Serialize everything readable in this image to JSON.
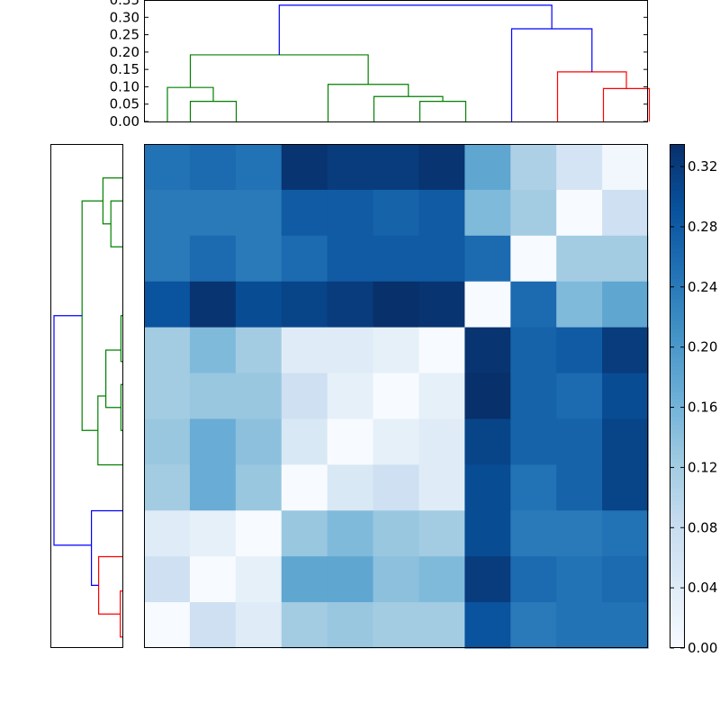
{
  "chart_data": [
    {
      "type": "dendrogram",
      "orientation": "top",
      "ylim": [
        0,
        0.35
      ],
      "yticks": [
        "0.00",
        "0.05",
        "0.10",
        "0.15",
        "0.20",
        "0.25",
        "0.30",
        "0.35"
      ],
      "links": [
        {
          "x": [
            0.5,
            1.5
          ],
          "h": 0.058,
          "children": [
            0,
            0
          ],
          "color": "#008000"
        },
        {
          "x": [
            0,
            1
          ],
          "h": 0.098,
          "children": [
            0,
            0.058
          ],
          "color": "#008000"
        },
        {
          "x": [
            5.5,
            6.5
          ],
          "h": 0.058,
          "children": [
            0,
            0
          ],
          "color": "#008000"
        },
        {
          "x": [
            4.5,
            6
          ],
          "h": 0.072,
          "children": [
            0,
            0.058
          ],
          "color": "#008000"
        },
        {
          "x": [
            3.5,
            5.25
          ],
          "h": 0.107,
          "children": [
            0,
            0.072
          ],
          "color": "#008000"
        },
        {
          "x": [
            0.5,
            4.375
          ],
          "h": 0.192,
          "children": [
            0.098,
            0.107
          ],
          "color": "#008000"
        },
        {
          "x": [
            9.5,
            10.5
          ],
          "h": 0.095,
          "children": [
            0,
            0
          ],
          "color": "#ff0000"
        },
        {
          "x": [
            8.5,
            10
          ],
          "h": 0.143,
          "children": [
            0,
            0.095
          ],
          "color": "#ff0000"
        },
        {
          "x": [
            7.5,
            9.25
          ],
          "h": 0.267,
          "children": [
            0,
            0.143
          ],
          "color": "#0000ff"
        },
        {
          "x": [
            2.4375,
            8.375
          ],
          "h": 0.335,
          "children": [
            0.192,
            0.267
          ],
          "color": "#0000ff"
        }
      ]
    },
    {
      "type": "dendrogram",
      "orientation": "left",
      "links": [
        {
          "y": [
            9.25,
            10.25
          ],
          "d": 0.03,
          "children": [
            0,
            0
          ],
          "color": "#ff0000"
        },
        {
          "y": [
            8.5,
            9.75
          ],
          "d": 0.33,
          "children": [
            0,
            0.03
          ],
          "color": "#ff0000"
        },
        {
          "y": [
            7.5,
            9.125
          ],
          "d": 0.43,
          "children": [
            0,
            0.33
          ],
          "color": "#0000ff"
        },
        {
          "y": [
            3.25,
            4.25
          ],
          "d": 0.02,
          "children": [
            0,
            0
          ],
          "color": "#008000"
        },
        {
          "y": [
            4.75,
            5.75
          ],
          "d": 0.02,
          "children": [
            0,
            0
          ],
          "color": "#008000"
        },
        {
          "y": [
            4.0,
            5.25
          ],
          "d": 0.23,
          "children": [
            0.02,
            0.02
          ],
          "color": "#008000"
        },
        {
          "y": [
            5.0,
            6.5
          ],
          "d": 0.34,
          "children": [
            0.23,
            0
          ],
          "color": "#008000"
        },
        {
          "y": [
            0.75,
            1.75
          ],
          "d": 0.16,
          "children": [
            0,
            0
          ],
          "color": "#008000"
        },
        {
          "y": [
            0.25,
            1.25
          ],
          "d": 0.27,
          "children": [
            0,
            0.16
          ],
          "color": "#008000"
        },
        {
          "y": [
            0.75,
            5.75
          ],
          "d": 0.56,
          "children": [
            0.27,
            0.34
          ],
          "color": "#008000"
        },
        {
          "y": [
            3.25,
            8.25
          ],
          "d": 0.95,
          "children": [
            0.56,
            0.43
          ],
          "color": "#0000ff"
        }
      ]
    },
    {
      "type": "heatmap",
      "colormap": "Blues",
      "vmin": 0,
      "vmax": 0.335,
      "colorbar_ticks": [
        "0.00",
        "0.04",
        "0.08",
        "0.12",
        "0.16",
        "0.20",
        "0.24",
        "0.28",
        "0.32"
      ],
      "values": [
        [
          0.25,
          0.26,
          0.25,
          0.33,
          0.32,
          0.32,
          0.33,
          0.18,
          0.11,
          0.06,
          0.01
        ],
        [
          0.24,
          0.24,
          0.24,
          0.28,
          0.28,
          0.27,
          0.28,
          0.15,
          0.12,
          0.0,
          0.07
        ],
        [
          0.24,
          0.26,
          0.24,
          0.26,
          0.28,
          0.28,
          0.28,
          0.26,
          0.0,
          0.12,
          0.12
        ],
        [
          0.29,
          0.33,
          0.3,
          0.31,
          0.32,
          0.335,
          0.33,
          0.0,
          0.26,
          0.15,
          0.18
        ],
        [
          0.12,
          0.15,
          0.12,
          0.04,
          0.04,
          0.03,
          0.0,
          0.33,
          0.27,
          0.28,
          0.32
        ],
        [
          0.12,
          0.13,
          0.13,
          0.07,
          0.03,
          0.0,
          0.03,
          0.335,
          0.27,
          0.26,
          0.3
        ],
        [
          0.13,
          0.17,
          0.14,
          0.05,
          0.0,
          0.03,
          0.04,
          0.31,
          0.27,
          0.27,
          0.31
        ],
        [
          0.12,
          0.17,
          0.13,
          0.0,
          0.05,
          0.07,
          0.04,
          0.3,
          0.25,
          0.27,
          0.31
        ],
        [
          0.04,
          0.03,
          0.0,
          0.13,
          0.15,
          0.13,
          0.12,
          0.3,
          0.24,
          0.24,
          0.25
        ],
        [
          0.07,
          0.0,
          0.03,
          0.18,
          0.18,
          0.14,
          0.15,
          0.32,
          0.26,
          0.25,
          0.26
        ],
        [
          0.0,
          0.07,
          0.04,
          0.12,
          0.13,
          0.12,
          0.12,
          0.29,
          0.24,
          0.25,
          0.25
        ]
      ]
    }
  ]
}
